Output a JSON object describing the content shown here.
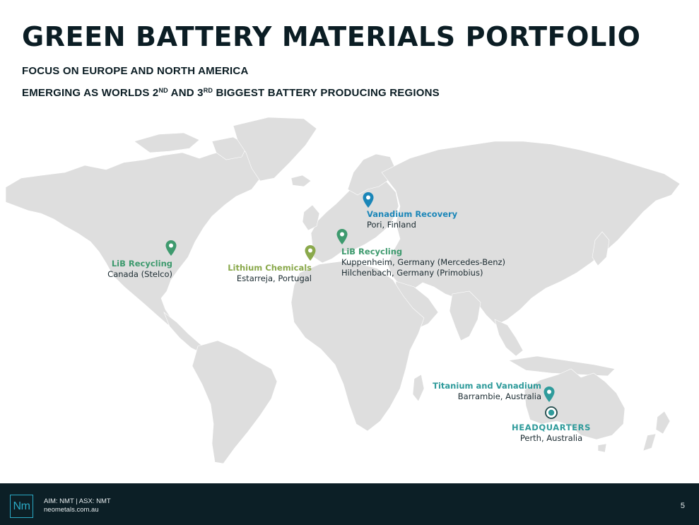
{
  "header": {
    "title": "GREEN BATTERY MATERIALS PORTFOLIO",
    "subtitle_1": "FOCUS ON EUROPE AND NORTH AMERICA",
    "subtitle_2_part1": "EMERGING AS WORLDS 2",
    "subtitle_2_sup1": "ND",
    "subtitle_2_part2": " AND 3",
    "subtitle_2_sup2": "RD",
    "subtitle_2_part3": " BIGGEST BATTERY PRODUCING REGIONS"
  },
  "map": {
    "colors": {
      "land": "#dedede",
      "green_pin": "#3e9a6e",
      "olive_pin": "#8aa94c",
      "blue_pin": "#1b86b8",
      "teal_pin": "#2f9b9b"
    },
    "locations": {
      "canada": {
        "label": "LiB Recycling",
        "place": "Canada (Stelco)",
        "color": "#3e9a6e"
      },
      "portugal": {
        "label": "Lithium Chemicals",
        "place": "Estarreja, Portugal",
        "color": "#8aa94c"
      },
      "germany": {
        "label": "LiB Recycling",
        "place_1": "Kuppenheim, Germany (Mercedes-Benz)",
        "place_2": "Hilchenbach, Germany (Primobius)",
        "color": "#3e9a6e"
      },
      "finland": {
        "label": "Vanadium Recovery",
        "place": "Pori, Finland",
        "color": "#1b86b8"
      },
      "barrambie": {
        "label": "Titanium and Vanadium",
        "place": "Barrambie, Australia",
        "color": "#2f9b9b"
      },
      "perth": {
        "label": "HEADQUARTERS",
        "place": "Perth, Australia",
        "color": "#2f9b9b"
      }
    }
  },
  "footer": {
    "logo_text": "Nm",
    "line_1": "AIM: NMT | ASX: NMT",
    "line_2": "neometals.com.au",
    "page_number": "5"
  }
}
